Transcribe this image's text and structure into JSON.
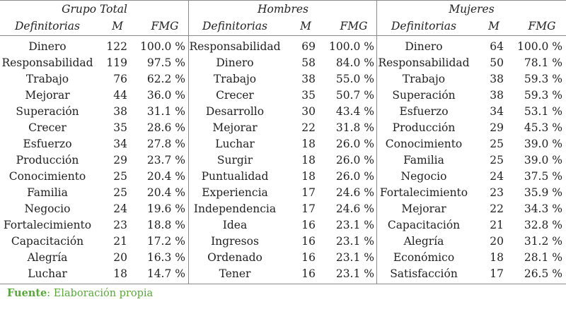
{
  "table": {
    "groups": [
      {
        "title": "Grupo Total",
        "col_headers": [
          "Definitorias",
          "M",
          "FMG"
        ],
        "rows": [
          [
            "Dinero",
            "122",
            "100.0 %"
          ],
          [
            "Responsabilidad",
            "119",
            "97.5 %"
          ],
          [
            "Trabajo",
            "76",
            "62.2 %"
          ],
          [
            "Mejorar",
            "44",
            "36.0 %"
          ],
          [
            "Superación",
            "38",
            "31.1 %"
          ],
          [
            "Crecer",
            "35",
            "28.6 %"
          ],
          [
            "Esfuerzo",
            "34",
            "27.8 %"
          ],
          [
            "Producción",
            "29",
            "23.7 %"
          ],
          [
            "Conocimiento",
            "25",
            "20.4 %"
          ],
          [
            "Familia",
            "25",
            "20.4 %"
          ],
          [
            "Negocio",
            "24",
            "19.6 %"
          ],
          [
            "Fortalecimiento",
            "23",
            "18.8 %"
          ],
          [
            "Capacitación",
            "21",
            "17.2 %"
          ],
          [
            "Alegría",
            "20",
            "16.3 %"
          ],
          [
            "Luchar",
            "18",
            "14.7 %"
          ]
        ]
      },
      {
        "title": "Hombres",
        "col_headers": [
          "Definitorias",
          "M",
          "FMG"
        ],
        "rows": [
          [
            "Responsabilidad",
            "69",
            "100.0 %"
          ],
          [
            "Dinero",
            "58",
            "84.0 %"
          ],
          [
            "Trabajo",
            "38",
            "55.0 %"
          ],
          [
            "Crecer",
            "35",
            "50.7 %"
          ],
          [
            "Desarrollo",
            "30",
            "43.4 %"
          ],
          [
            "Mejorar",
            "22",
            "31.8 %"
          ],
          [
            "Luchar",
            "18",
            "26.0 %"
          ],
          [
            "Surgir",
            "18",
            "26.0 %"
          ],
          [
            "Puntualidad",
            "18",
            "26.0 %"
          ],
          [
            "Experiencia",
            "17",
            "24.6 %"
          ],
          [
            "Independencia",
            "17",
            "24.6 %"
          ],
          [
            "Idea",
            "16",
            "23.1 %"
          ],
          [
            "Ingresos",
            "16",
            "23.1 %"
          ],
          [
            "Ordenado",
            "16",
            "23.1 %"
          ],
          [
            "Tener",
            "16",
            "23.1 %"
          ]
        ]
      },
      {
        "title": "Mujeres",
        "col_headers": [
          "Definitorias",
          "M",
          "FMG"
        ],
        "rows": [
          [
            "Dinero",
            "64",
            "100.0 %"
          ],
          [
            "Responsabilidad",
            "50",
            "78.1 %"
          ],
          [
            "Trabajo",
            "38",
            "59.3 %"
          ],
          [
            "Superación",
            "38",
            "59.3 %"
          ],
          [
            "Esfuerzo",
            "34",
            "53.1 %"
          ],
          [
            "Producción",
            "29",
            "45.3 %"
          ],
          [
            "Conocimiento",
            "25",
            "39.0 %"
          ],
          [
            "Familia",
            "25",
            "39.0 %"
          ],
          [
            "Negocio",
            "24",
            "37.5 %"
          ],
          [
            "Fortalecimiento",
            "23",
            "35.9 %"
          ],
          [
            "Mejorar",
            "22",
            "34.3 %"
          ],
          [
            "Capacitación",
            "21",
            "32.8 %"
          ],
          [
            "Alegría",
            "20",
            "31.2 %"
          ],
          [
            "Económico",
            "18",
            "28.1 %"
          ],
          [
            "Satisfacción",
            "17",
            "26.5 %"
          ]
        ]
      }
    ]
  },
  "source": {
    "label": "Fuente",
    "text": ": Elaboración propia",
    "color": "#5aa63c"
  },
  "colors": {
    "text": "#222222",
    "rule": "#8a8a8a"
  }
}
